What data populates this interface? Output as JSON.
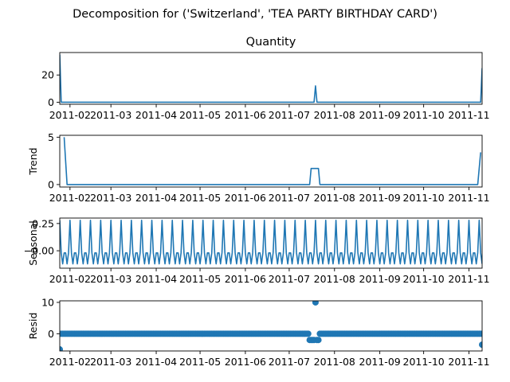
{
  "figure": {
    "suptitle": "Decomposition for ('Switzerland', 'TEA PARTY BIRTHDAY CARD')"
  },
  "x_tick_labels": [
    "2011-02",
    "2011-03",
    "2011-04",
    "2011-05",
    "2011-06",
    "2011-07",
    "2011-08",
    "2011-09",
    "2011-10",
    "2011-11"
  ],
  "colors": {
    "series": "#1f77b4",
    "axis": "#000000"
  },
  "chart_data": [
    {
      "type": "line",
      "panel": "observed",
      "title": "Quantity",
      "ylabel": "",
      "x_type": "date",
      "x_range": [
        "2011-01-25",
        "2011-11-10"
      ],
      "ylim": [
        -1.5,
        36.5
      ],
      "yticks": [
        0,
        20
      ],
      "grid": false,
      "x": [
        "2011-01-25",
        "2011-01-26",
        "2011-01-27",
        "2011-07-18",
        "2011-07-19",
        "2011-07-20",
        "2011-11-08",
        "2011-11-09",
        "2011-11-10"
      ],
      "y": [
        35,
        0,
        0,
        0,
        12,
        0,
        0,
        0,
        25
      ]
    },
    {
      "type": "line",
      "panel": "trend",
      "title": "",
      "ylabel": "Trend",
      "x_type": "date",
      "x_range": [
        "2011-01-25",
        "2011-11-10"
      ],
      "ylim": [
        -0.26,
        5.2
      ],
      "yticks": [
        0,
        5
      ],
      "grid": false,
      "x": [
        "2011-01-28",
        "2011-01-29",
        "2011-01-30",
        "2011-07-15",
        "2011-07-16",
        "2011-07-21",
        "2011-07-22",
        "2011-11-07",
        "2011-11-09"
      ],
      "y": [
        5.0,
        2.5,
        0,
        0,
        1.7,
        1.7,
        0,
        0,
        3.4
      ]
    },
    {
      "type": "line",
      "panel": "seasonal",
      "title": "",
      "ylabel": "Seasonal",
      "x_type": "date",
      "x_range": [
        "2011-01-25",
        "2011-11-10"
      ],
      "ylim": [
        -0.16,
        0.3
      ],
      "yticks": [
        0.25,
        -0.0
      ],
      "ytick_labels": [
        "0.25",
        "−0.00"
      ],
      "grid": false,
      "period_days": 7,
      "start": "2011-01-25",
      "end": "2011-11-10",
      "weekly_pattern": [
        0.28,
        -0.02,
        -0.12,
        -0.02,
        -0.02,
        -0.12,
        -0.02
      ]
    },
    {
      "type": "scatter",
      "panel": "resid",
      "title": "",
      "ylabel": "Resid",
      "x_type": "date",
      "x_range": [
        "2011-01-25",
        "2011-11-10"
      ],
      "ylim": [
        -5.5,
        10.5
      ],
      "yticks": [
        0,
        10
      ],
      "grid": false,
      "baseline": 0,
      "start": "2011-01-26",
      "end": "2011-11-09",
      "exceptions": [
        {
          "x": "2011-01-25",
          "y": -5.0
        },
        {
          "x": "2011-07-15",
          "y": -2.0
        },
        {
          "x": "2011-07-16",
          "y": -2.0
        },
        {
          "x": "2011-07-17",
          "y": -2.0
        },
        {
          "x": "2011-07-18",
          "y": -2.0
        },
        {
          "x": "2011-07-19",
          "y": 10.0
        },
        {
          "x": "2011-07-20",
          "y": -2.0
        },
        {
          "x": "2011-07-21",
          "y": -2.0
        },
        {
          "x": "2011-11-10",
          "y": -3.5
        }
      ]
    }
  ]
}
